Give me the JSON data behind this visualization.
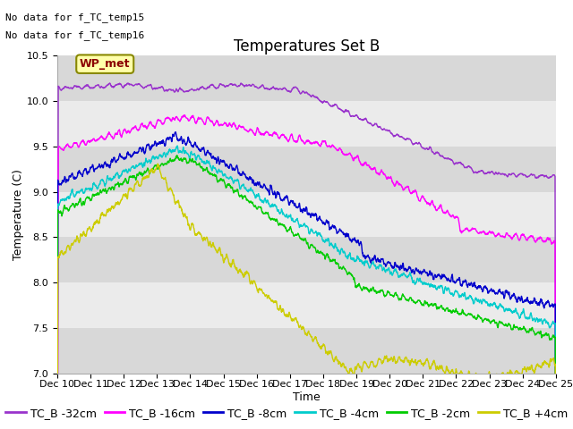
{
  "title": "Temperatures Set B",
  "xlabel": "Time",
  "ylabel": "Temperature (C)",
  "ylim": [
    7.0,
    10.5
  ],
  "xlim": [
    0,
    360
  ],
  "xtick_positions": [
    0,
    24,
    48,
    72,
    96,
    120,
    144,
    168,
    192,
    216,
    240,
    264,
    288,
    312,
    336,
    360
  ],
  "xtick_labels": [
    "Dec 10",
    "Dec 11",
    "Dec 12",
    "Dec 13",
    "Dec 14",
    "Dec 15",
    "Dec 16",
    "Dec 17",
    "Dec 18",
    "Dec 19",
    "Dec 20",
    "Dec 21",
    "Dec 22",
    "Dec 23",
    "Dec 24",
    "Dec 25"
  ],
  "no_data_text": [
    "No data for f_TC_temp15",
    "No data for f_TC_temp16"
  ],
  "wp_met_label": "WP_met",
  "legend_labels": [
    "TC_B -32cm",
    "TC_B -16cm",
    "TC_B -8cm",
    "TC_B -4cm",
    "TC_B -2cm",
    "TC_B +4cm"
  ],
  "line_colors": [
    "#9933CC",
    "#FF00FF",
    "#0000CC",
    "#00CCCC",
    "#00CC00",
    "#CCCC00"
  ],
  "background_color": "#FFFFFF",
  "plot_bg_light": "#EBEBEB",
  "plot_bg_dark": "#D8D8D8",
  "title_fontsize": 12,
  "axis_fontsize": 9,
  "tick_fontsize": 8,
  "legend_fontsize": 9,
  "annot_fontsize": 8
}
